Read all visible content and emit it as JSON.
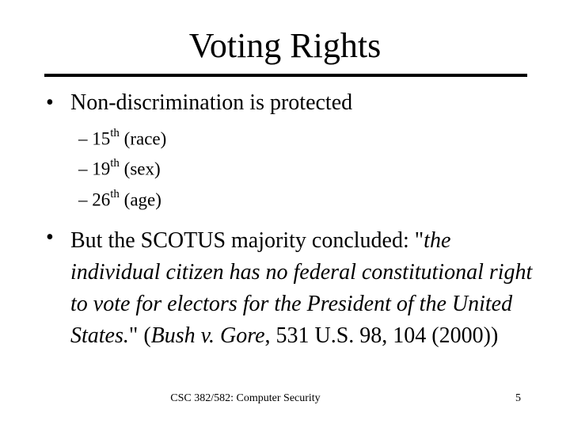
{
  "slide": {
    "title": "Voting Rights",
    "bullet_char": "•",
    "bullet1": "Non-discrimination is protected",
    "subitems": [
      {
        "dash": "–",
        "num": "15",
        "sup": "th",
        "rest": " (race)"
      },
      {
        "dash": "–",
        "num": "19",
        "sup": "th",
        "rest": " (sex)"
      },
      {
        "dash": "–",
        "num": "26",
        "sup": "th",
        "rest": " (age)"
      }
    ],
    "bullet2": {
      "pre": "But the SCOTUS majority concluded: \"",
      "quote": "the individual citizen has no federal constitutional right to vote for electors for the President of the United States.",
      "mid": "\" (",
      "case": "Bush v. Gore",
      "post": ", 531 U.S. 98, 104 (2000))"
    },
    "footer": "CSC 382/582: Computer Security",
    "page_number": "5"
  }
}
